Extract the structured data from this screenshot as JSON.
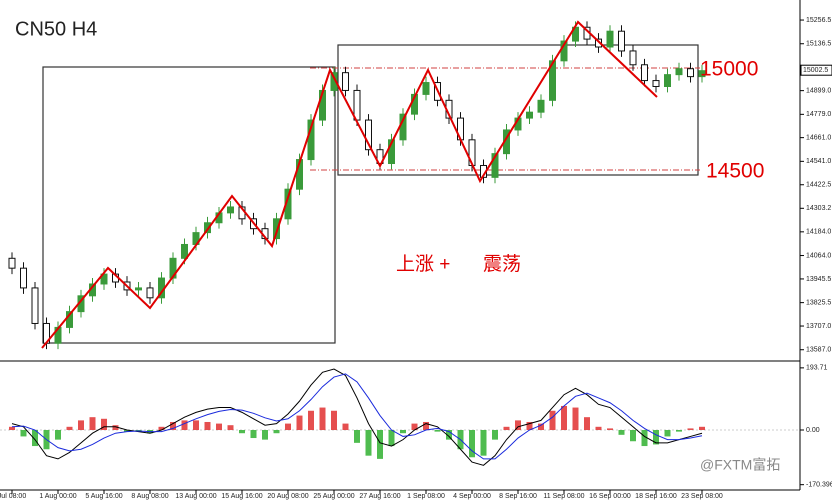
{
  "chart_data": {
    "type": "candlestick",
    "title": "CN50  H4",
    "categories": [
      "Jul 08:00",
      null,
      null,
      null,
      "1 Aug 00:00",
      null,
      null,
      null,
      "5 Aug 16:00",
      null,
      null,
      null,
      "8 Aug 08:00",
      null,
      null,
      null,
      "13 Aug 00:00",
      null,
      null,
      null,
      "15 Aug 16:00",
      null,
      null,
      null,
      "20 Aug 08:00",
      null,
      null,
      null,
      "25 Aug 00:00",
      null,
      null,
      null,
      "27 Aug 16:00",
      null,
      null,
      null,
      "1 Sep 08:00",
      null,
      null,
      null,
      "4 Sep 00:00",
      null,
      null,
      null,
      "8 Sep 16:00",
      null,
      null,
      null,
      "11 Sep 08:00",
      null,
      null,
      null,
      "16 Sep 00:00",
      null,
      null,
      null,
      "18 Sep 16:00",
      null,
      null,
      null,
      "23 Sep 08:00"
    ],
    "open": [
      14050,
      14000,
      13900,
      13720,
      13620,
      13700,
      13780,
      13860,
      13920,
      13970,
      13930,
      13890,
      13900,
      13850,
      13950,
      14050,
      14120,
      14180,
      14230,
      14280,
      14310,
      14250,
      14200,
      14150,
      14250,
      14400,
      14550,
      14750,
      14900,
      14990,
      14900,
      14750,
      14600,
      14530,
      14650,
      14780,
      14880,
      14940,
      14850,
      14760,
      14650,
      14520,
      14460,
      14580,
      14700,
      14760,
      14790,
      14850,
      15050,
      15150,
      15220,
      15160,
      15120,
      15200,
      15100,
      15030,
      14950,
      14920,
      14980,
      15010,
      14970
    ],
    "high": [
      14080,
      14030,
      13930,
      13750,
      13730,
      13810,
      13890,
      13950,
      14000,
      14000,
      13960,
      13930,
      13930,
      13980,
      14080,
      14150,
      14210,
      14260,
      14310,
      14340,
      14340,
      14280,
      14230,
      14280,
      14430,
      14580,
      14780,
      14930,
      15020,
      15020,
      14930,
      14780,
      14630,
      14680,
      14810,
      14910,
      14970,
      14970,
      14880,
      14790,
      14680,
      14550,
      14610,
      14730,
      14790,
      14820,
      14880,
      15080,
      15180,
      15250,
      15250,
      15190,
      15230,
      15230,
      15130,
      15060,
      14980,
      15010,
      15040,
      15040,
      15030
    ],
    "low": [
      13970,
      13870,
      13690,
      13590,
      13590,
      13670,
      13750,
      13830,
      13890,
      13900,
      13860,
      13860,
      13820,
      13820,
      13920,
      14020,
      14090,
      14150,
      14200,
      14250,
      14220,
      14170,
      14120,
      14120,
      14220,
      14370,
      14520,
      14720,
      14870,
      14870,
      14720,
      14570,
      14500,
      14500,
      14620,
      14750,
      14850,
      14820,
      14730,
      14620,
      14490,
      14430,
      14430,
      14550,
      14670,
      14730,
      14760,
      14820,
      15020,
      15120,
      15130,
      15090,
      15090,
      15070,
      15000,
      14920,
      14890,
      14890,
      14950,
      14940,
      14940
    ],
    "close": [
      14000,
      13900,
      13720,
      13620,
      13700,
      13780,
      13860,
      13920,
      13970,
      13930,
      13890,
      13900,
      13850,
      13950,
      14050,
      14120,
      14180,
      14230,
      14280,
      14310,
      14250,
      14200,
      14150,
      14250,
      14400,
      14550,
      14750,
      14900,
      14990,
      14900,
      14750,
      14600,
      14530,
      14650,
      14780,
      14880,
      14940,
      14850,
      14760,
      14650,
      14520,
      14460,
      14580,
      14700,
      14760,
      14790,
      14850,
      15050,
      15150,
      15220,
      15160,
      15120,
      15200,
      15100,
      15030,
      14950,
      14920,
      14980,
      15010,
      14970,
      15000
    ],
    "up_color": "#3a9a3a",
    "down_color": "#111111",
    "ylim": [
      13535,
      15358
    ],
    "yticks": [
      15256.5,
      15136.5,
      {
        "value": 14899,
        "label": "14899.0"
      },
      {
        "value": 14779,
        "label": "14779.0"
      },
      {
        "value": 14661,
        "label": "14661.0"
      },
      {
        "value": 14541,
        "label": "14541.0"
      },
      14422.5,
      14303.2,
      {
        "value": 14184,
        "label": "14184.0"
      },
      {
        "value": 14064,
        "label": "14064.0"
      },
      13945.5,
      13825.5,
      {
        "value": 13707,
        "label": "13707.0"
      },
      {
        "value": 13587,
        "label": "13587.0"
      }
    ],
    "last_price": 15002.5,
    "annotations": [
      "15000",
      "14500",
      "上涨 +",
      "震荡"
    ],
    "watermark": "@FXTM富拓",
    "histogram": {
      "pos_color": "#e03030",
      "neg_color": "#30b030",
      "axis": "y2",
      "values": [
        10,
        -20,
        -50,
        -60,
        -30,
        10,
        30,
        40,
        35,
        15,
        -5,
        -5,
        -10,
        10,
        25,
        30,
        30,
        25,
        20,
        15,
        -10,
        -25,
        -30,
        -10,
        20,
        45,
        60,
        70,
        60,
        20,
        -40,
        -80,
        -90,
        -50,
        -10,
        20,
        25,
        -5,
        -30,
        -60,
        -85,
        -80,
        -30,
        10,
        30,
        25,
        20,
        60,
        75,
        70,
        40,
        10,
        5,
        -15,
        -35,
        -50,
        -45,
        -20,
        -5,
        5,
        10
      ]
    },
    "series": [
      {
        "color": "#000000",
        "axis": "y2",
        "values": [
          20,
          10,
          -30,
          -80,
          -90,
          -70,
          -40,
          -10,
          10,
          10,
          0,
          -5,
          -10,
          0,
          20,
          40,
          55,
          65,
          70,
          70,
          55,
          35,
          15,
          20,
          50,
          90,
          140,
          180,
          190,
          170,
          100,
          20,
          -40,
          -50,
          -30,
          0,
          20,
          10,
          -20,
          -60,
          -100,
          -110,
          -80,
          -30,
          10,
          20,
          30,
          70,
          110,
          130,
          110,
          80,
          70,
          40,
          10,
          -20,
          -40,
          -40,
          -30,
          -20,
          -10
        ]
      },
      {
        "color": "#1a2adc",
        "axis": "y2",
        "values": [
          10,
          12,
          0,
          -30,
          -55,
          -65,
          -60,
          -45,
          -25,
          -10,
          -5,
          -3,
          -5,
          -5,
          5,
          20,
          35,
          48,
          58,
          64,
          62,
          52,
          38,
          28,
          35,
          60,
          95,
          135,
          165,
          175,
          150,
          100,
          45,
          0,
          -20,
          -15,
          0,
          5,
          -5,
          -30,
          -65,
          -90,
          -90,
          -60,
          -25,
          0,
          15,
          40,
          75,
          105,
          115,
          100,
          85,
          60,
          30,
          5,
          -15,
          -30,
          -30,
          -25,
          -18
        ]
      }
    ],
    "y2lim": [
      -187,
      212
    ],
    "y2ticks": [
      193.71,
      {
        "value": 0,
        "label": "0.00"
      },
      -170.396
    ]
  }
}
